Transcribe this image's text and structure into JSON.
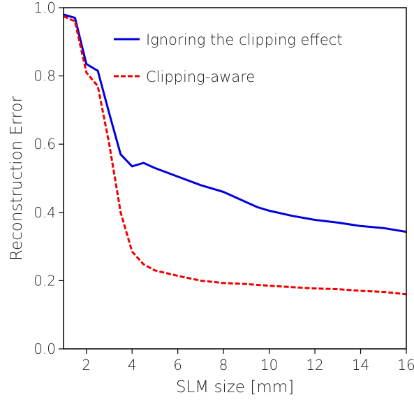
{
  "chart_data": {
    "type": "line",
    "title": "",
    "xlabel": "SLM size [mm]",
    "ylabel": "Reconstruction Error",
    "xlim": [
      1,
      16
    ],
    "ylim": [
      0,
      1
    ],
    "xticks": [
      2,
      4,
      6,
      8,
      10,
      12,
      14,
      16
    ],
    "xtick_labels": [
      "2",
      "4",
      "6",
      "8",
      "10",
      "12",
      "14",
      "16"
    ],
    "yticks": [
      0.0,
      0.2,
      0.4,
      0.6,
      0.8,
      1.0
    ],
    "ytick_labels": [
      "0.0",
      "0.2",
      "0.4",
      "0.6",
      "0.8",
      "1.0"
    ],
    "grid": false,
    "legend_position": "top-right",
    "series": [
      {
        "name": "Ignoring the clipping effect",
        "color": "#0000dd",
        "line_style": "solid",
        "x": [
          1,
          1.5,
          2,
          2.5,
          3,
          3.5,
          4,
          4.5,
          5,
          6,
          7,
          8,
          9,
          9.5,
          10,
          11,
          12,
          13,
          14,
          15,
          16
        ],
        "y": [
          0.98,
          0.97,
          0.835,
          0.815,
          0.69,
          0.57,
          0.535,
          0.545,
          0.53,
          0.505,
          0.48,
          0.46,
          0.43,
          0.415,
          0.405,
          0.39,
          0.378,
          0.37,
          0.36,
          0.354,
          0.343
        ]
      },
      {
        "name": "Clipping-aware",
        "color": "#ee0000",
        "line_style": "dashed",
        "x": [
          1,
          1.5,
          2,
          2.5,
          3,
          3.5,
          4,
          4.5,
          5,
          6,
          7,
          8,
          9,
          10,
          11,
          12,
          13,
          14,
          15,
          16
        ],
        "y": [
          0.975,
          0.96,
          0.81,
          0.77,
          0.6,
          0.4,
          0.285,
          0.248,
          0.23,
          0.214,
          0.2,
          0.193,
          0.19,
          0.185,
          0.181,
          0.177,
          0.175,
          0.17,
          0.167,
          0.16
        ]
      }
    ]
  }
}
